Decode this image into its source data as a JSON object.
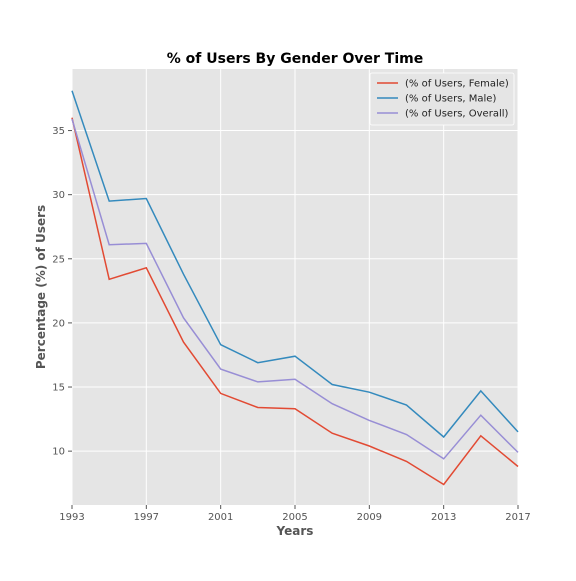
{
  "chart_data": {
    "type": "line",
    "title": "% of Users By Gender Over Time",
    "xlabel": "Years",
    "ylabel": "Percentage (%) of Users",
    "x": [
      1993,
      1995,
      1997,
      1999,
      2001,
      2003,
      2005,
      2007,
      2009,
      2011,
      2013,
      2015,
      2017
    ],
    "xlim": [
      1993,
      2017
    ],
    "ylim": [
      5.8,
      39.8
    ],
    "xticks": [
      1993,
      1997,
      2001,
      2005,
      2009,
      2013,
      2017
    ],
    "yticks": [
      10,
      15,
      20,
      25,
      30,
      35
    ],
    "grid": true,
    "legend_position": "top-right",
    "series": [
      {
        "name": "(% of Users, Female)",
        "color": "#E24A33",
        "values": [
          36.0,
          23.4,
          24.3,
          18.5,
          14.5,
          13.4,
          13.3,
          11.4,
          10.4,
          9.2,
          7.4,
          11.2,
          8.8
        ]
      },
      {
        "name": "(% of Users, Male)",
        "color": "#348ABD",
        "values": [
          38.1,
          29.5,
          29.7,
          23.8,
          18.3,
          16.9,
          17.4,
          15.2,
          14.6,
          13.6,
          11.1,
          14.7,
          11.5
        ]
      },
      {
        "name": "(% of Users, Overall)",
        "color": "#988ED5",
        "values": [
          35.9,
          26.1,
          26.2,
          20.4,
          16.4,
          15.4,
          15.6,
          13.7,
          12.4,
          11.3,
          9.4,
          12.8,
          9.9
        ]
      }
    ]
  }
}
